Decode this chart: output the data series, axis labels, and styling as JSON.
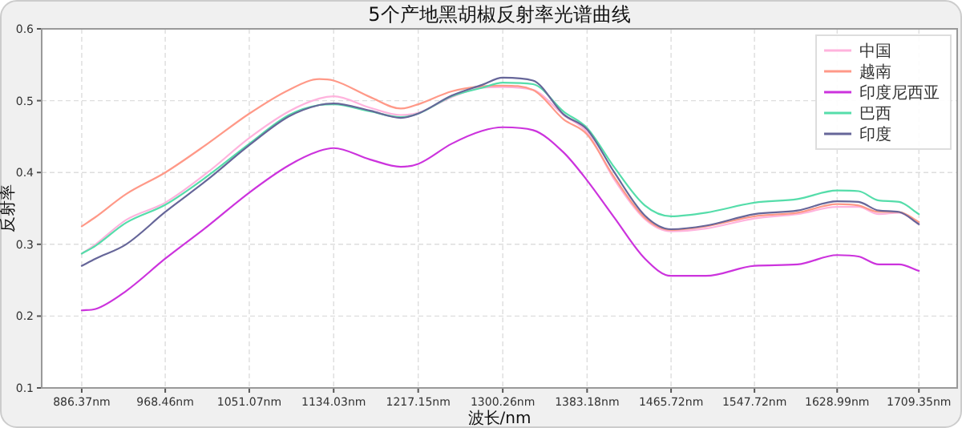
{
  "chart_data": {
    "type": "line",
    "title": "5个产地黑胡椒反射率光谱曲线",
    "xlabel": "波长/nm",
    "ylabel": "反射率",
    "x": [
      886.37,
      900,
      930,
      968.46,
      1010,
      1051.07,
      1090,
      1120,
      1134.03,
      1170,
      1200,
      1217.15,
      1250,
      1280,
      1300.26,
      1330,
      1360,
      1383.18,
      1410,
      1440,
      1465.72,
      1500,
      1547.72,
      1590,
      1628.99,
      1650,
      1670,
      1690,
      1709.35
    ],
    "xlim": [
      847,
      1747
    ],
    "xticks": [
      {
        "value": 886.37,
        "label": "886.37nm"
      },
      {
        "value": 968.46,
        "label": "968.46nm"
      },
      {
        "value": 1051.07,
        "label": "1051.07nm"
      },
      {
        "value": 1134.03,
        "label": "1134.03nm"
      },
      {
        "value": 1217.15,
        "label": "1217.15nm"
      },
      {
        "value": 1300.26,
        "label": "1300.26nm"
      },
      {
        "value": 1383.18,
        "label": "1383.18nm"
      },
      {
        "value": 1465.72,
        "label": "1465.72nm"
      },
      {
        "value": 1547.72,
        "label": "1547.72nm"
      },
      {
        "value": 1628.99,
        "label": "1628.99nm"
      },
      {
        "value": 1709.35,
        "label": "1709.35nm"
      }
    ],
    "ylim": [
      0.1,
      0.6
    ],
    "yticks": [
      0.1,
      0.2,
      0.3,
      0.4,
      0.5,
      0.6
    ],
    "grid": true,
    "legend": "top right",
    "series": [
      {
        "name": "中国",
        "color": "#ffb3dd",
        "values": [
          0.287,
          0.3,
          0.334,
          0.358,
          0.4,
          0.448,
          0.485,
          0.503,
          0.506,
          0.49,
          0.48,
          0.483,
          0.505,
          0.518,
          0.519,
          0.515,
          0.48,
          0.456,
          0.39,
          0.335,
          0.318,
          0.322,
          0.336,
          0.342,
          0.352,
          0.352,
          0.342,
          0.344,
          0.328
        ]
      },
      {
        "name": "越南",
        "color": "#ff9988",
        "values": [
          0.325,
          0.338,
          0.37,
          0.4,
          0.44,
          0.482,
          0.515,
          0.53,
          0.528,
          0.505,
          0.489,
          0.495,
          0.513,
          0.52,
          0.521,
          0.515,
          0.474,
          0.453,
          0.393,
          0.337,
          0.32,
          0.325,
          0.339,
          0.344,
          0.356,
          0.354,
          0.345,
          0.345,
          0.331
        ]
      },
      {
        "name": "印度尼西亚",
        "color": "#cc33dd",
        "values": [
          0.208,
          0.21,
          0.235,
          0.28,
          0.325,
          0.372,
          0.41,
          0.43,
          0.434,
          0.418,
          0.408,
          0.412,
          0.44,
          0.458,
          0.463,
          0.459,
          0.428,
          0.389,
          0.337,
          0.28,
          0.256,
          0.256,
          0.27,
          0.272,
          0.285,
          0.283,
          0.272,
          0.272,
          0.263
        ]
      },
      {
        "name": "巴西",
        "color": "#55ddaa",
        "values": [
          0.287,
          0.298,
          0.33,
          0.355,
          0.395,
          0.44,
          0.48,
          0.494,
          0.495,
          0.485,
          0.477,
          0.482,
          0.506,
          0.518,
          0.525,
          0.523,
          0.485,
          0.462,
          0.407,
          0.354,
          0.339,
          0.344,
          0.358,
          0.363,
          0.375,
          0.374,
          0.361,
          0.359,
          0.342
        ]
      },
      {
        "name": "印度",
        "color": "#666699",
        "values": [
          0.27,
          0.28,
          0.3,
          0.345,
          0.39,
          0.438,
          0.478,
          0.494,
          0.496,
          0.486,
          0.476,
          0.482,
          0.507,
          0.522,
          0.532,
          0.528,
          0.481,
          0.46,
          0.4,
          0.34,
          0.321,
          0.326,
          0.342,
          0.347,
          0.36,
          0.359,
          0.347,
          0.345,
          0.328
        ]
      }
    ]
  }
}
